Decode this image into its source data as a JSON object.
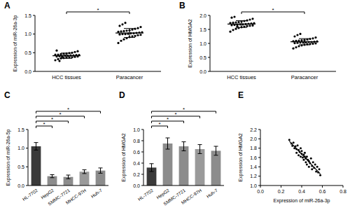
{
  "chart_data": [
    {
      "panel": "A",
      "type": "dot_plot",
      "color": "#000000",
      "categories": [
        "HCC tissues",
        "Paracancer"
      ],
      "ylabel": "Expression of miR-26a-3p",
      "ylim": [
        0,
        1.5
      ],
      "yticks": [
        {
          "value": 0,
          "label": "0.0"
        },
        0.5,
        {
          "value": 1,
          "label": "1.0"
        },
        1.5
      ],
      "values": [
        [
          0.3,
          0.33,
          0.35,
          0.36,
          0.37,
          0.38,
          0.38,
          0.39,
          0.4,
          0.4,
          0.41,
          0.41,
          0.42,
          0.42,
          0.43,
          0.43,
          0.44,
          0.44,
          0.45,
          0.45,
          0.46,
          0.47,
          0.48,
          0.49,
          0.5,
          0.52,
          0.54,
          0.56,
          0.28,
          0.39
        ],
        [
          0.76,
          0.82,
          0.86,
          0.89,
          0.92,
          0.94,
          0.95,
          0.97,
          0.98,
          0.99,
          1.0,
          1.0,
          1.01,
          1.02,
          1.02,
          1.03,
          1.04,
          1.05,
          1.06,
          1.07,
          1.08,
          1.09,
          1.1,
          1.12,
          1.14,
          1.16,
          1.19,
          1.22,
          1.26,
          1.3
        ]
      ],
      "means": [
        0.42,
        1.03
      ],
      "sd": [
        0.07,
        0.12
      ],
      "significance": [
        {
          "from": 0,
          "to": 1,
          "label": "*"
        }
      ]
    },
    {
      "panel": "B",
      "type": "dot_plot",
      "color": "#000000",
      "categories": [
        "HCC tissues",
        "Paracancer"
      ],
      "ylabel": "Expression of HMGA2",
      "ylim": [
        0,
        2
      ],
      "yticks": [
        {
          "value": 0,
          "label": "0.0"
        },
        0.5,
        {
          "value": 1,
          "label": "1.0"
        },
        1.5,
        {
          "value": 2,
          "label": "2.0"
        }
      ],
      "values": [
        [
          1.42,
          1.48,
          1.52,
          1.55,
          1.58,
          1.6,
          1.62,
          1.63,
          1.64,
          1.65,
          1.66,
          1.67,
          1.68,
          1.68,
          1.69,
          1.7,
          1.71,
          1.72,
          1.73,
          1.74,
          1.75,
          1.76,
          1.78,
          1.8,
          1.82,
          1.85,
          1.88,
          1.92,
          1.95,
          1.61
        ],
        [
          0.82,
          0.86,
          0.9,
          0.93,
          0.95,
          0.97,
          0.98,
          0.99,
          1.0,
          1.01,
          1.02,
          1.03,
          1.03,
          1.04,
          1.05,
          1.05,
          1.06,
          1.07,
          1.08,
          1.09,
          1.1,
          1.11,
          1.12,
          1.14,
          1.16,
          1.18,
          1.21,
          1.25,
          1.3,
          1.34
        ]
      ],
      "means": [
        1.69,
        1.06
      ],
      "sd": [
        0.12,
        0.11
      ],
      "significance": [
        {
          "from": 0,
          "to": 1,
          "label": "*"
        }
      ]
    },
    {
      "panel": "C",
      "type": "bar",
      "categories": [
        "HL-7702",
        "HepG2",
        "SMMC-7721",
        "MHCC-97H",
        "Huh-7"
      ],
      "values": [
        1.05,
        0.25,
        0.23,
        0.37,
        0.4
      ],
      "errors": [
        0.1,
        0.04,
        0.05,
        0.05,
        0.07
      ],
      "colors": [
        "#3a3a3a",
        "#8c8c8c",
        "#8c8c8c",
        "#9a9a9a",
        "#8c8c8c"
      ],
      "ylabel": "Expression of miR-26a-5p",
      "ylim": [
        0,
        1.5
      ],
      "yticks": [
        {
          "value": 0,
          "label": "0.0"
        },
        0.5,
        {
          "value": 1,
          "label": "1.0"
        },
        1.5
      ],
      "significance": [
        {
          "from": 0,
          "to": 1,
          "label": "*"
        },
        {
          "from": 0,
          "to": 2,
          "label": "*"
        },
        {
          "from": 0,
          "to": 3,
          "label": "*"
        },
        {
          "from": 0,
          "to": 4,
          "label": "*"
        }
      ]
    },
    {
      "panel": "D",
      "type": "bar",
      "categories": [
        "HL-7702",
        "HepG2",
        "SMMC-7721",
        "MHCC-97H",
        "Huh-7"
      ],
      "values": [
        0.32,
        0.75,
        0.7,
        0.65,
        0.62
      ],
      "errors": [
        0.07,
        0.1,
        0.08,
        0.08,
        0.08
      ],
      "colors": [
        "#3a3a3a",
        "#8c8c8c",
        "#8c8c8c",
        "#9a9a9a",
        "#8c8c8c"
      ],
      "ylabel": "Expression of HMGA2",
      "ylim": [
        0,
        1
      ],
      "yticks": [
        {
          "value": 0,
          "label": "0.0"
        },
        0.2,
        0.4,
        0.6,
        0.8,
        {
          "value": 1,
          "label": "1.0"
        }
      ],
      "significance": [
        {
          "from": 0,
          "to": 1,
          "label": "*"
        },
        {
          "from": 0,
          "to": 2,
          "label": "*"
        },
        {
          "from": 0,
          "to": 3,
          "label": "*"
        },
        {
          "from": 0,
          "to": 4,
          "label": "*"
        }
      ]
    },
    {
      "panel": "E",
      "type": "scatter",
      "color": "#000000",
      "xlabel": "Expression of miR-26a-3p",
      "ylabel": "Expression of HMGA2",
      "xlim": [
        0,
        0.8
      ],
      "xticks": [
        {
          "value": 0,
          "label": "0.0"
        },
        0.2,
        0.4,
        0.6,
        0.8
      ],
      "ylim": [
        1,
        2.2
      ],
      "yticks": [
        {
          "value": 1,
          "label": "1.0"
        },
        1.2,
        1.4,
        1.6,
        1.8,
        {
          "value": 2,
          "label": "2.0"
        },
        2.2
      ],
      "x": [
        0.28,
        0.3,
        0.31,
        0.32,
        0.33,
        0.34,
        0.35,
        0.35,
        0.36,
        0.37,
        0.37,
        0.38,
        0.39,
        0.39,
        0.4,
        0.4,
        0.41,
        0.42,
        0.42,
        0.43,
        0.44,
        0.44,
        0.45,
        0.45,
        0.46,
        0.47,
        0.47,
        0.48,
        0.49,
        0.5,
        0.5,
        0.51,
        0.52,
        0.53,
        0.54,
        0.55,
        0.56,
        0.57,
        0.58,
        0.43
      ],
      "values": [
        1.98,
        1.9,
        1.85,
        1.92,
        1.8,
        1.84,
        1.78,
        1.7,
        1.86,
        1.76,
        1.65,
        1.72,
        1.8,
        1.62,
        1.68,
        1.74,
        1.6,
        1.66,
        1.55,
        1.7,
        1.58,
        1.5,
        1.62,
        1.45,
        1.55,
        1.52,
        1.4,
        1.48,
        1.58,
        1.42,
        1.35,
        1.5,
        1.38,
        1.45,
        1.3,
        1.4,
        1.28,
        1.35,
        1.22,
        1.62
      ],
      "fit": {
        "x": [
          0.28,
          0.58
        ],
        "y": [
          1.95,
          1.25
        ]
      }
    }
  ]
}
